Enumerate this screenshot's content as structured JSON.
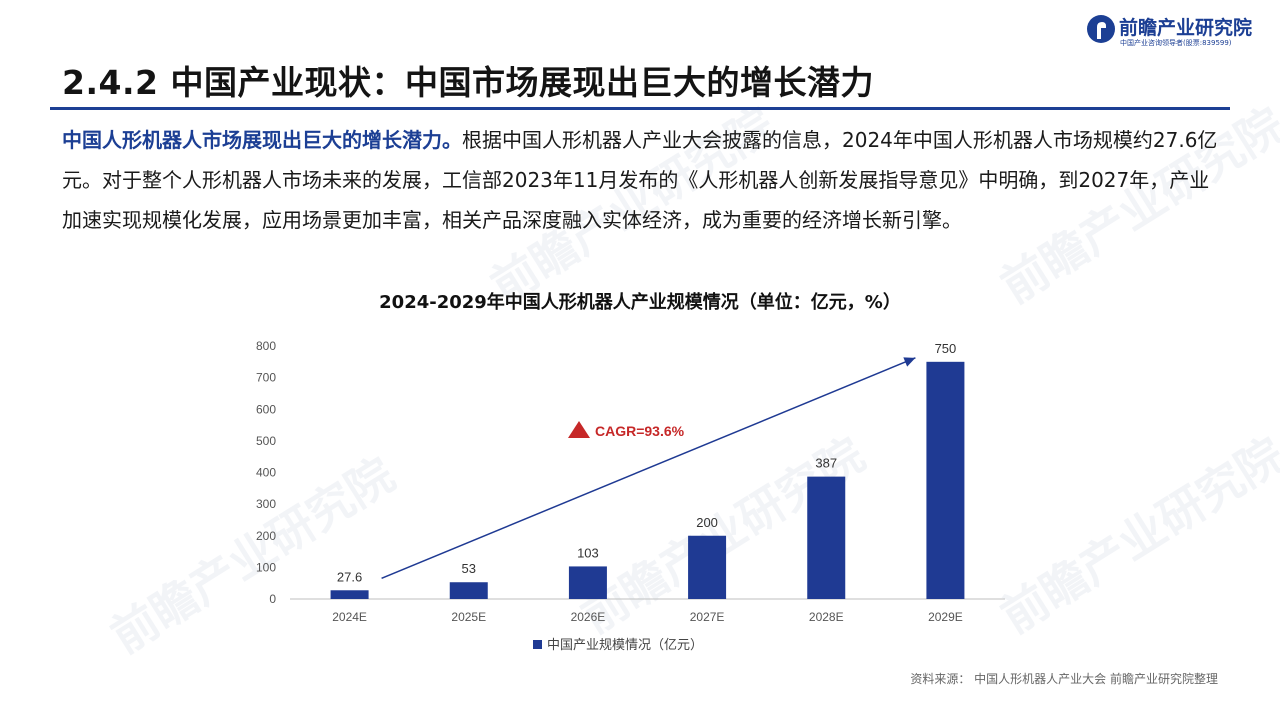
{
  "brand": {
    "name": "前瞻产业研究院",
    "tagline": "中国产业咨询领导者(股票:839599)",
    "color": "#1c3f94"
  },
  "page": {
    "title": "2.4.2 中国产业现状：中国市场展现出巨大的增长潜力",
    "intro_lead": "中国人形机器人市场展现出巨大的增长潜力。",
    "intro_body": "根据中国人形机器人产业大会披露的信息，2024年中国人形机器人市场规模约27.6亿元。对于整个人形机器人市场未来的发展，工信部2023年11月发布的《人形机器人创新发展指导意见》中明确，到2027年，产业加速实现规模化发展，应用场景更加丰富，相关产品深度融入实体经济，成为重要的经济增长新引擎。",
    "source": "资料来源：  中国人形机器人产业大会 前瞻产业研究院整理"
  },
  "chart_data": {
    "type": "bar",
    "title": "2024-2029年中国人形机器人产业规模情况（单位：亿元，%）",
    "categories": [
      "2024E",
      "2025E",
      "2026E",
      "2027E",
      "2028E",
      "2029E"
    ],
    "series": [
      {
        "name": "中国产业规模情况（亿元）",
        "values": [
          27.6,
          53,
          103,
          200,
          387,
          750
        ],
        "labels": [
          "27.6",
          "53",
          "103",
          "200",
          "387",
          "750"
        ],
        "color": "#1f3a93"
      }
    ],
    "ylim": [
      0,
      800
    ],
    "yticks": [
      0,
      100,
      200,
      300,
      400,
      500,
      600,
      700,
      800
    ],
    "grid": false,
    "legend_position": "bottom",
    "annotation": {
      "text": "CAGR=93.6%",
      "marker_color": "#c62828",
      "text_color": "#c62828",
      "arrow_from": {
        "category": "2024E",
        "value": 27.6
      },
      "arrow_to": {
        "category": "2029E",
        "value": 750
      },
      "arrow_color": "#1f3a93"
    }
  }
}
